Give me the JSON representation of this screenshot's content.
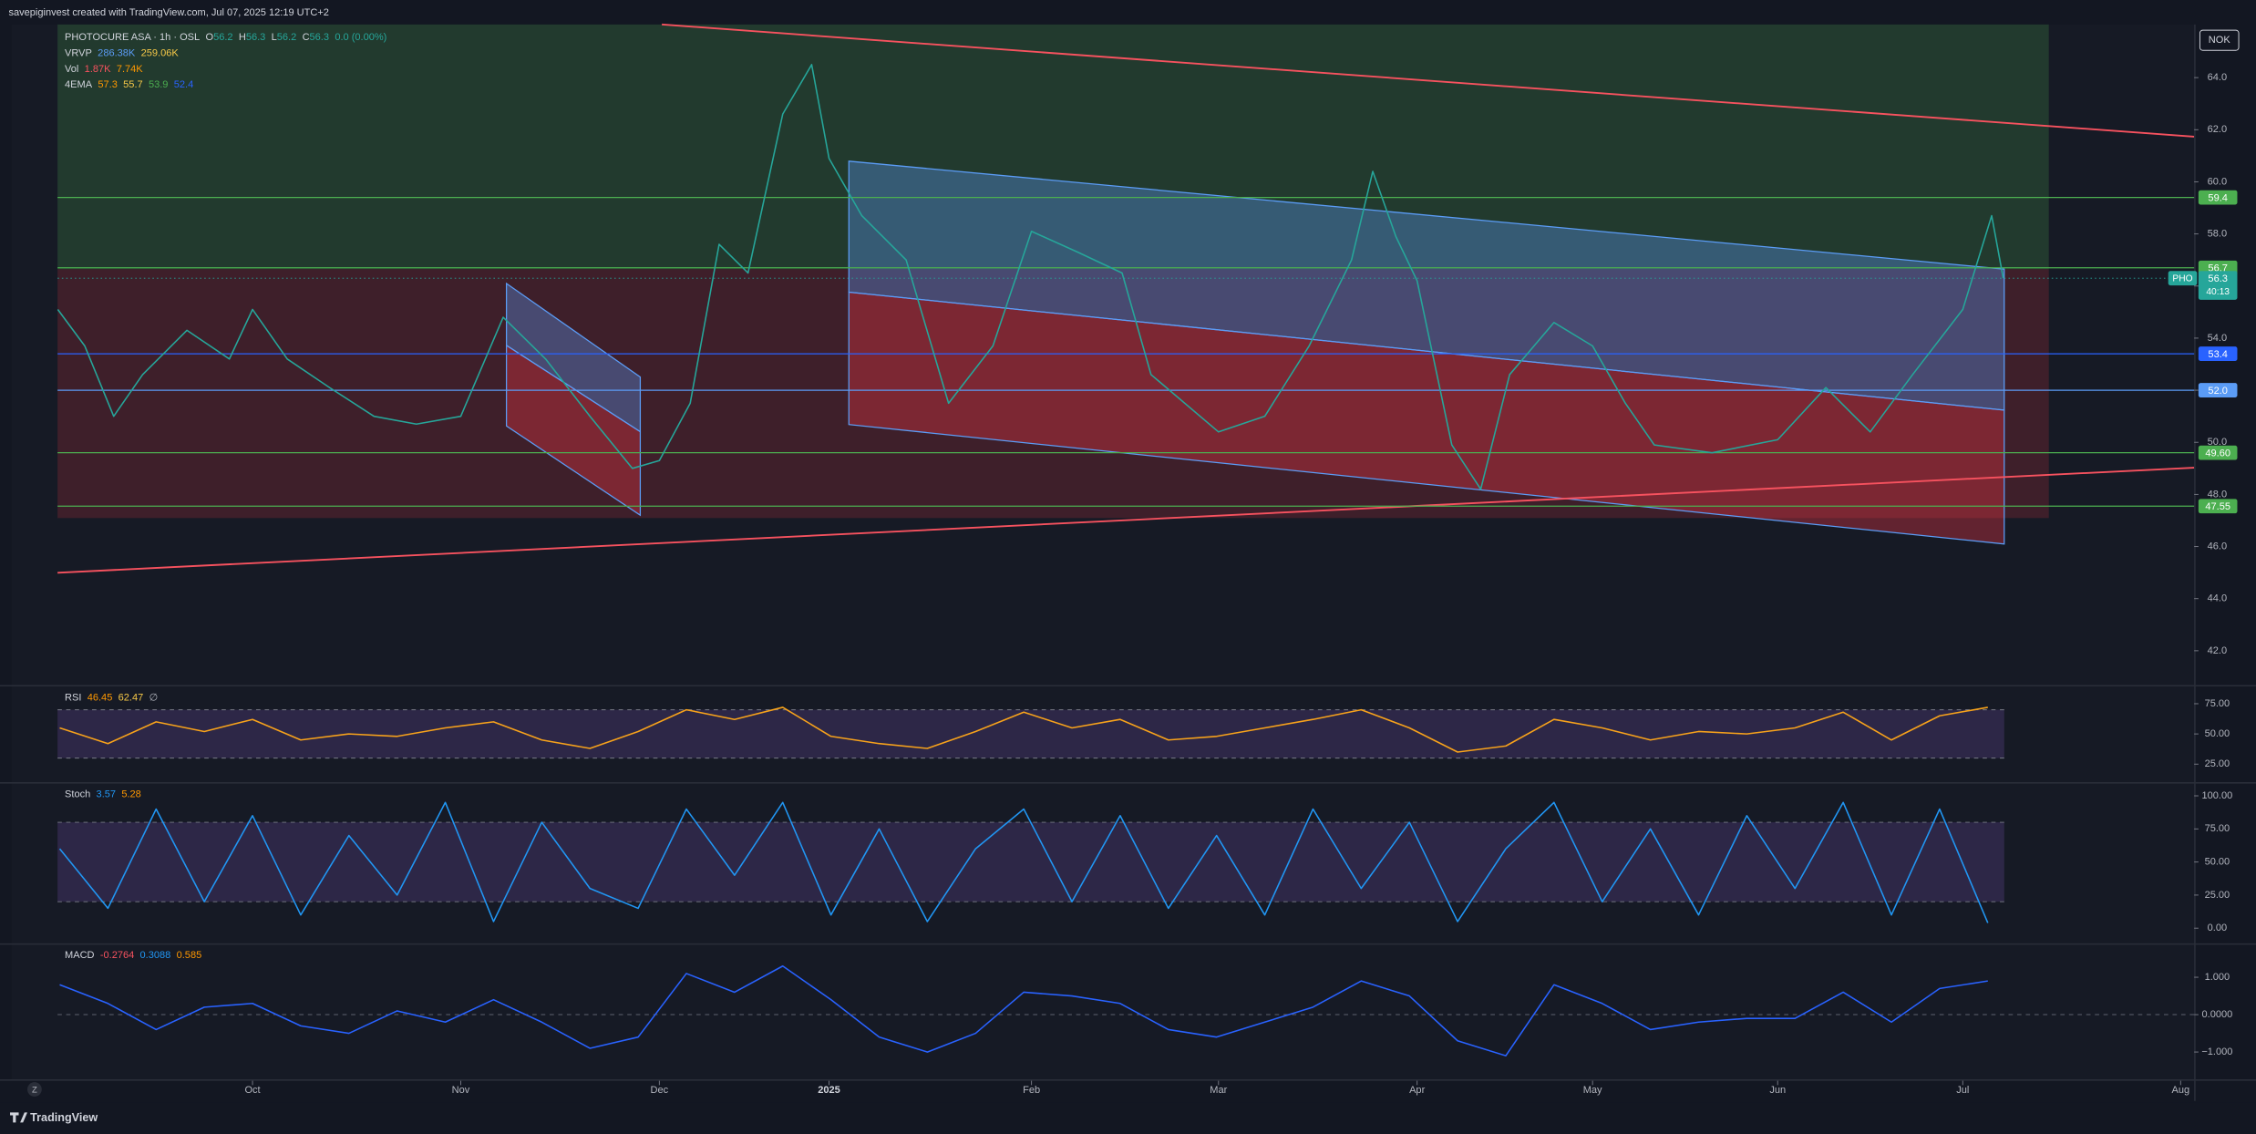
{
  "header": {
    "credit": "savepiginvest created with TradingView.com, Jul 07, 2025 12:19 UTC+2",
    "currency": "NOK"
  },
  "chart_data": [
    {
      "type": "line",
      "title": "PHOTOCURE ASA · 1h · OSL",
      "ohlc": [
        {
          "label": "O",
          "value": 56.2
        },
        {
          "label": "H",
          "value": 56.3
        },
        {
          "label": "L",
          "value": 56.2
        },
        {
          "label": "C",
          "value": 56.3
        }
      ],
      "change": "0.0 (0.00%)",
      "indicators": [
        {
          "name": "VRVP",
          "readouts": [
            "286.38K",
            "259.06K"
          ],
          "colors": [
            "#5b9cf6",
            "#f7c948"
          ]
        },
        {
          "name": "Vol",
          "readouts": [
            "1.87K",
            "7.74K"
          ],
          "colors": [
            "#f7525f",
            "#ff9800"
          ]
        },
        {
          "name": "4EMA",
          "readouts": [
            57.3,
            55.7,
            53.9,
            52.4
          ],
          "colors": [
            "#ff9800",
            "#f7c948",
            "#4caf50",
            "#2962ff"
          ]
        }
      ],
      "x": [
        8.99,
        9.13,
        9.28,
        9.43,
        9.66,
        9.88,
        10.0,
        10.18,
        10.4,
        10.63,
        10.85,
        11.08,
        11.3,
        11.52,
        11.75,
        11.97,
        12.11,
        12.27,
        12.42,
        12.57,
        12.75,
        12.9,
        12.99,
        13.16,
        13.39,
        13.61,
        13.84,
        14.04,
        14.28,
        14.51,
        14.66,
        15.01,
        15.25,
        15.48,
        15.7,
        15.81,
        15.93,
        16.04,
        16.22,
        16.37,
        16.52,
        16.75,
        16.95,
        17.12,
        17.27,
        17.57,
        17.91,
        18.16,
        18.39,
        18.61,
        18.87,
        19.02,
        19.08
      ],
      "values": [
        55.1,
        53.7,
        51.0,
        52.6,
        54.3,
        53.2,
        55.1,
        53.2,
        52.1,
        51.0,
        50.7,
        51.0,
        54.8,
        53.2,
        51.0,
        49.0,
        49.3,
        51.5,
        57.6,
        56.5,
        62.6,
        64.5,
        60.9,
        58.7,
        57.0,
        51.5,
        53.7,
        58.1,
        57.3,
        56.5,
        52.6,
        50.4,
        51.0,
        53.7,
        57.0,
        60.4,
        57.9,
        56.2,
        49.9,
        48.2,
        52.6,
        54.6,
        53.7,
        51.5,
        49.9,
        49.6,
        50.1,
        52.1,
        50.4,
        52.6,
        55.1,
        58.7,
        56.3
      ],
      "color": "#26a69a",
      "xlim": [
        8.75,
        20.07
      ],
      "xticks": [
        {
          "value": 10.0,
          "label": "Oct"
        },
        {
          "value": 11.08,
          "label": "Nov"
        },
        {
          "value": 12.11,
          "label": "Dec"
        },
        {
          "value": 12.99,
          "label": "2025"
        },
        {
          "value": 14.04,
          "label": "Feb"
        },
        {
          "value": 15.01,
          "label": "Mar"
        },
        {
          "value": 16.04,
          "label": "Apr"
        },
        {
          "value": 16.95,
          "label": "May"
        },
        {
          "value": 17.91,
          "label": "Jun"
        },
        {
          "value": 18.87,
          "label": "Jul"
        },
        {
          "value": 20.0,
          "label": "Aug"
        }
      ],
      "ylim": [
        40.74,
        66.04
      ],
      "yticks": [
        {
          "value": 42,
          "label": "42.0"
        },
        {
          "value": 44,
          "label": "44.0"
        },
        {
          "value": 46,
          "label": "46.0"
        },
        {
          "value": 48,
          "label": "48.0"
        },
        {
          "value": 50,
          "label": "50.0"
        },
        {
          "value": 52,
          "label": "52.0"
        },
        {
          "value": 54,
          "label": "54.0"
        },
        {
          "value": 56,
          "label": "56.0"
        },
        {
          "value": 58,
          "label": "58.0"
        },
        {
          "value": 60,
          "label": "60.0"
        },
        {
          "value": 62,
          "label": "62.0"
        },
        {
          "value": 64,
          "label": "64.0"
        }
      ],
      "levels": [
        {
          "value": 59.4,
          "color": "#4caf50"
        },
        {
          "value": 56.7,
          "color": "#4caf50"
        },
        {
          "value": 53.4,
          "color": "#2962ff"
        },
        {
          "value": 52,
          "label": "52.0",
          "color": "#5b9cf6"
        },
        {
          "value": 49.6,
          "label": "49.60",
          "color": "#4caf50"
        },
        {
          "value": 47.55,
          "color": "#4caf50"
        }
      ],
      "last": {
        "symbol": "PHO",
        "value": 56.3,
        "countdown": "40:13",
        "color": "#26a69a"
      }
    },
    {
      "type": "line",
      "legend": {
        "name": "RSI",
        "readouts": [
          46.45,
          62.47,
          "∅"
        ],
        "colors": [
          "#ff9800",
          "#f7c948",
          "#b2b5be"
        ]
      },
      "x": [
        9,
        9.25,
        9.5,
        9.75,
        10,
        10.25,
        10.5,
        10.75,
        11,
        11.25,
        11.5,
        11.75,
        12,
        12.25,
        12.5,
        12.75,
        13,
        13.25,
        13.5,
        13.75,
        14,
        14.25,
        14.5,
        14.75,
        15,
        15.25,
        15.5,
        15.75,
        16,
        16.25,
        16.5,
        16.75,
        17,
        17.25,
        17.5,
        17.75,
        18,
        18.25,
        18.5,
        18.75,
        19
      ],
      "values": [
        55,
        42,
        60,
        52,
        62,
        45,
        50,
        48,
        55,
        60,
        45,
        38,
        52,
        70,
        62,
        72,
        48,
        42,
        38,
        52,
        68,
        55,
        62,
        45,
        48,
        55,
        62,
        70,
        55,
        35,
        40,
        62,
        55,
        45,
        52,
        50,
        55,
        68,
        45,
        65,
        72
      ],
      "color": "#f7a21b",
      "band": [
        30,
        70
      ],
      "xlim": [
        8.75,
        20.07
      ],
      "ylim": [
        10.7,
        88.1
      ],
      "yticks": [
        {
          "value": 25,
          "label": "25.00"
        },
        {
          "value": 50,
          "label": "50.00"
        },
        {
          "value": 75,
          "label": "75.00"
        }
      ]
    },
    {
      "type": "line",
      "legend": {
        "name": "Stoch",
        "readouts": [
          3.57,
          5.28
        ],
        "colors": [
          "#2196f3",
          "#ff9800"
        ]
      },
      "x": [
        9,
        9.25,
        9.5,
        9.75,
        10,
        10.25,
        10.5,
        10.75,
        11,
        11.25,
        11.5,
        11.75,
        12,
        12.25,
        12.5,
        12.75,
        13,
        13.25,
        13.5,
        13.75,
        14,
        14.25,
        14.5,
        14.75,
        15,
        15.25,
        15.5,
        15.75,
        16,
        16.25,
        16.5,
        16.75,
        17,
        17.25,
        17.5,
        17.75,
        18,
        18.25,
        18.5,
        18.75,
        19
      ],
      "values": [
        60,
        15,
        90,
        20,
        85,
        10,
        70,
        25,
        95,
        5,
        80,
        30,
        15,
        90,
        40,
        95,
        10,
        75,
        5,
        60,
        90,
        20,
        85,
        15,
        70,
        10,
        90,
        30,
        80,
        5,
        60,
        95,
        20,
        75,
        10,
        85,
        30,
        95,
        10,
        90,
        4
      ],
      "color": "#2196f3",
      "band": [
        20,
        80
      ],
      "xlim": [
        8.75,
        20.07
      ],
      "ylim": [
        -10.9,
        108.7
      ],
      "yticks": [
        {
          "value": 0,
          "label": "0.00"
        },
        {
          "value": 25,
          "label": "25.00"
        },
        {
          "value": 50,
          "label": "50.00"
        },
        {
          "value": 75,
          "label": "75.00"
        },
        {
          "value": 100,
          "label": "100.00"
        }
      ]
    },
    {
      "type": "line",
      "legend": {
        "name": "MACD",
        "readouts": [
          -0.2764,
          0.3088,
          0.585
        ],
        "colors": [
          "#f7525f",
          "#2196f3",
          "#ff9800"
        ]
      },
      "x": [
        9,
        9.25,
        9.5,
        9.75,
        10,
        10.25,
        10.5,
        10.75,
        11,
        11.25,
        11.5,
        11.75,
        12,
        12.25,
        12.5,
        12.75,
        13,
        13.25,
        13.5,
        13.75,
        14,
        14.25,
        14.5,
        14.75,
        15,
        15.25,
        15.5,
        15.75,
        16,
        16.25,
        16.5,
        16.75,
        17,
        17.25,
        17.5,
        17.75,
        18,
        18.25,
        18.5,
        18.75,
        19
      ],
      "values": [
        0.8,
        0.3,
        -0.4,
        0.2,
        0.3,
        -0.3,
        -0.5,
        0.1,
        -0.2,
        0.4,
        -0.2,
        -0.9,
        -0.6,
        1.1,
        0.6,
        1.3,
        0.4,
        -0.6,
        -1.0,
        -0.5,
        0.6,
        0.5,
        0.3,
        -0.4,
        -0.6,
        -0.2,
        0.2,
        0.9,
        0.5,
        -0.7,
        -1.1,
        0.8,
        0.3,
        -0.4,
        -0.2,
        -0.1,
        -0.1,
        0.6,
        -0.2,
        0.7,
        0.9
      ],
      "color": "#2962ff",
      "xlim": [
        8.75,
        20.07
      ],
      "ylim": [
        -1.73,
        1.85
      ],
      "yticks": [
        {
          "value": -1,
          "label": "−1.000"
        },
        {
          "value": 0,
          "label": "0.0000"
        },
        {
          "value": 1,
          "label": "1.000"
        }
      ]
    }
  ],
  "footer": {
    "brand": "TradingView",
    "zoom": "Z"
  }
}
